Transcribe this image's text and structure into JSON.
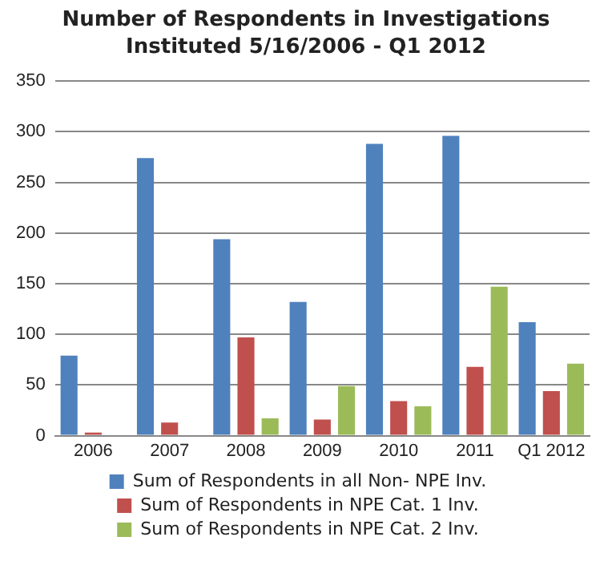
{
  "chart_data": {
    "type": "bar",
    "title": "Number of Respondents in Investigations Instituted 5/16/2006 - Q1 2012",
    "categories": [
      "2006",
      "2007",
      "2008",
      "2009",
      "2010",
      "2011",
      "Q1 2012"
    ],
    "series": [
      {
        "name": "Sum of Respondents in all Non- NPE Inv.",
        "color": "#4f81bd",
        "values": [
          79,
          274,
          194,
          132,
          288,
          296,
          112
        ]
      },
      {
        "name": "Sum of Respondents in NPE Cat. 1 Inv.",
        "color": "#c0504d",
        "values": [
          3,
          13,
          97,
          16,
          34,
          68,
          44
        ]
      },
      {
        "name": "Sum of Respondents in NPE Cat. 2 Inv.",
        "color": "#9bbb59",
        "values": [
          null,
          null,
          17,
          49,
          29,
          147,
          71
        ]
      }
    ],
    "ylim": [
      0,
      350
    ],
    "yticks": [
      0,
      50,
      100,
      150,
      200,
      250,
      300,
      350
    ],
    "grid": "y",
    "legend": "bottom"
  }
}
